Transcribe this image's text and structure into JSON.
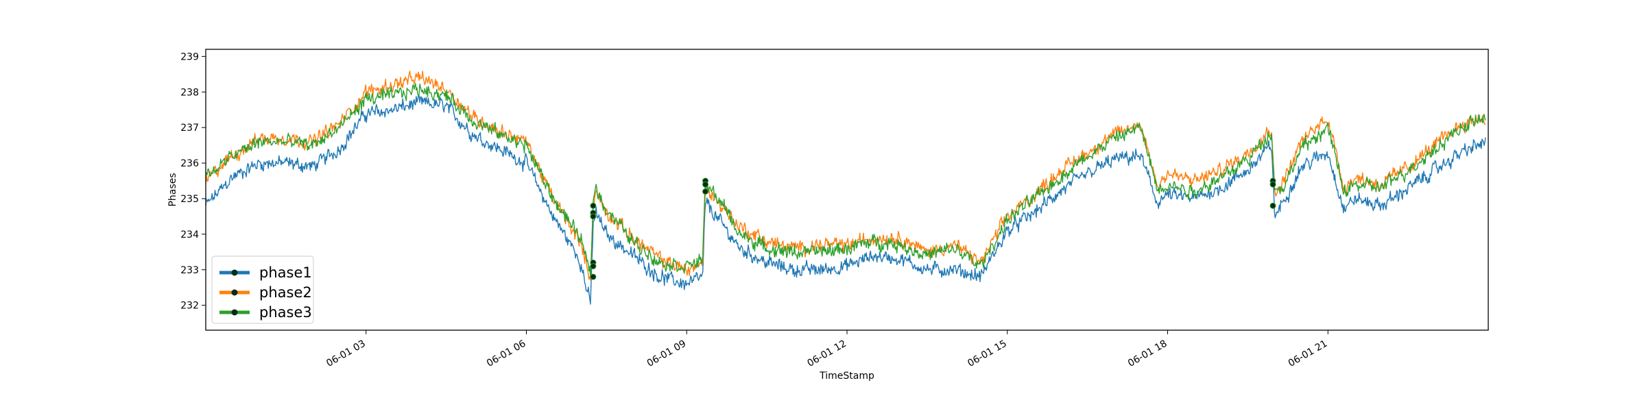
{
  "chart_data": {
    "type": "line",
    "title": "",
    "xlabel": "TimeStamp",
    "ylabel": "Phases",
    "xlim": [
      "06-01 00:00",
      "06-01 23:59"
    ],
    "ylim": [
      231.3,
      239.2
    ],
    "x_ticks": [
      {
        "hour": 3,
        "label": "06-01 03"
      },
      {
        "hour": 6,
        "label": "06-01 06"
      },
      {
        "hour": 9,
        "label": "06-01 09"
      },
      {
        "hour": 12,
        "label": "06-01 12"
      },
      {
        "hour": 15,
        "label": "06-01 15"
      },
      {
        "hour": 18,
        "label": "06-01 18"
      },
      {
        "hour": 21,
        "label": "06-01 21"
      }
    ],
    "y_ticks": [
      232,
      233,
      234,
      235,
      236,
      237,
      238,
      239
    ],
    "grid": false,
    "legend_position": "lower-left",
    "x_hours": [
      0,
      0.5,
      1,
      1.5,
      2,
      2.5,
      3,
      3.5,
      4,
      4.5,
      5,
      5.5,
      6,
      6.5,
      7,
      7.2,
      7.25,
      7.3,
      7.5,
      8,
      8.5,
      9,
      9.3,
      9.35,
      9.6,
      10,
      10.5,
      11,
      11.5,
      12,
      12.5,
      13,
      13.5,
      14,
      14.5,
      15,
      15.5,
      16,
      16.5,
      17,
      17.5,
      17.8,
      18,
      18.5,
      19,
      19.5,
      19.95,
      20.0,
      20.2,
      20.5,
      21,
      21.3,
      21.5,
      22,
      22.5,
      23,
      23.5,
      23.95
    ],
    "series": [
      {
        "name": "phase1",
        "color": "#1f77b4",
        "noise": 0.25,
        "values": [
          234.8,
          235.6,
          236.0,
          236.0,
          235.9,
          236.4,
          237.4,
          237.5,
          237.7,
          237.6,
          236.8,
          236.4,
          236.0,
          234.5,
          233.3,
          232.0,
          234.3,
          234.6,
          234.0,
          233.4,
          232.8,
          232.6,
          232.8,
          234.9,
          234.4,
          233.6,
          233.2,
          233.0,
          233.0,
          233.1,
          233.4,
          233.3,
          233.0,
          233.0,
          232.8,
          234.1,
          234.6,
          235.2,
          235.7,
          236.1,
          236.2,
          234.9,
          235.1,
          235.0,
          235.3,
          235.8,
          236.5,
          234.5,
          235.0,
          235.9,
          236.3,
          234.7,
          235.0,
          234.8,
          235.3,
          235.8,
          236.3,
          236.6
        ]
      },
      {
        "name": "phase2",
        "color": "#ff7f0e",
        "noise": 0.25,
        "values": [
          235.5,
          236.2,
          236.7,
          236.7,
          236.6,
          237.1,
          238.0,
          238.2,
          238.4,
          238.1,
          237.3,
          236.9,
          236.6,
          235.0,
          233.8,
          232.8,
          234.8,
          235.2,
          234.6,
          233.9,
          233.3,
          233.0,
          233.2,
          235.3,
          234.9,
          234.2,
          233.8,
          233.6,
          233.7,
          233.7,
          233.9,
          233.9,
          233.5,
          233.7,
          233.2,
          234.5,
          235.1,
          235.8,
          236.3,
          236.8,
          237.1,
          235.4,
          235.7,
          235.5,
          235.8,
          236.3,
          237.0,
          235.1,
          235.6,
          236.6,
          237.3,
          235.3,
          235.6,
          235.4,
          235.9,
          236.5,
          237.1,
          237.3
        ]
      },
      {
        "name": "phase3",
        "color": "#2ca02c",
        "noise": 0.25,
        "values": [
          235.6,
          236.2,
          236.6,
          236.6,
          236.5,
          237.0,
          237.8,
          237.9,
          238.1,
          237.9,
          237.2,
          236.8,
          236.5,
          235.0,
          233.9,
          232.9,
          235.0,
          235.3,
          234.7,
          233.8,
          233.2,
          233.1,
          233.3,
          235.4,
          235.0,
          234.0,
          233.6,
          233.5,
          233.5,
          233.6,
          233.8,
          233.7,
          233.4,
          233.6,
          233.1,
          234.4,
          235.0,
          235.6,
          236.2,
          236.7,
          237.0,
          235.3,
          235.4,
          235.2,
          235.6,
          236.1,
          236.9,
          235.2,
          235.4,
          236.4,
          237.0,
          235.2,
          235.4,
          235.3,
          235.8,
          236.4,
          237.0,
          237.3
        ]
      }
    ],
    "markers": [
      {
        "hour": 7.25,
        "value": 234.8
      },
      {
        "hour": 7.25,
        "value": 234.6
      },
      {
        "hour": 7.25,
        "value": 234.5
      },
      {
        "hour": 7.25,
        "value": 233.2
      },
      {
        "hour": 7.25,
        "value": 233.1
      },
      {
        "hour": 7.25,
        "value": 232.8
      },
      {
        "hour": 9.35,
        "value": 235.5
      },
      {
        "hour": 9.35,
        "value": 235.4
      },
      {
        "hour": 9.35,
        "value": 235.2
      },
      {
        "hour": 19.97,
        "value": 235.5
      },
      {
        "hour": 19.97,
        "value": 235.4
      },
      {
        "hour": 19.97,
        "value": 234.8
      }
    ]
  }
}
